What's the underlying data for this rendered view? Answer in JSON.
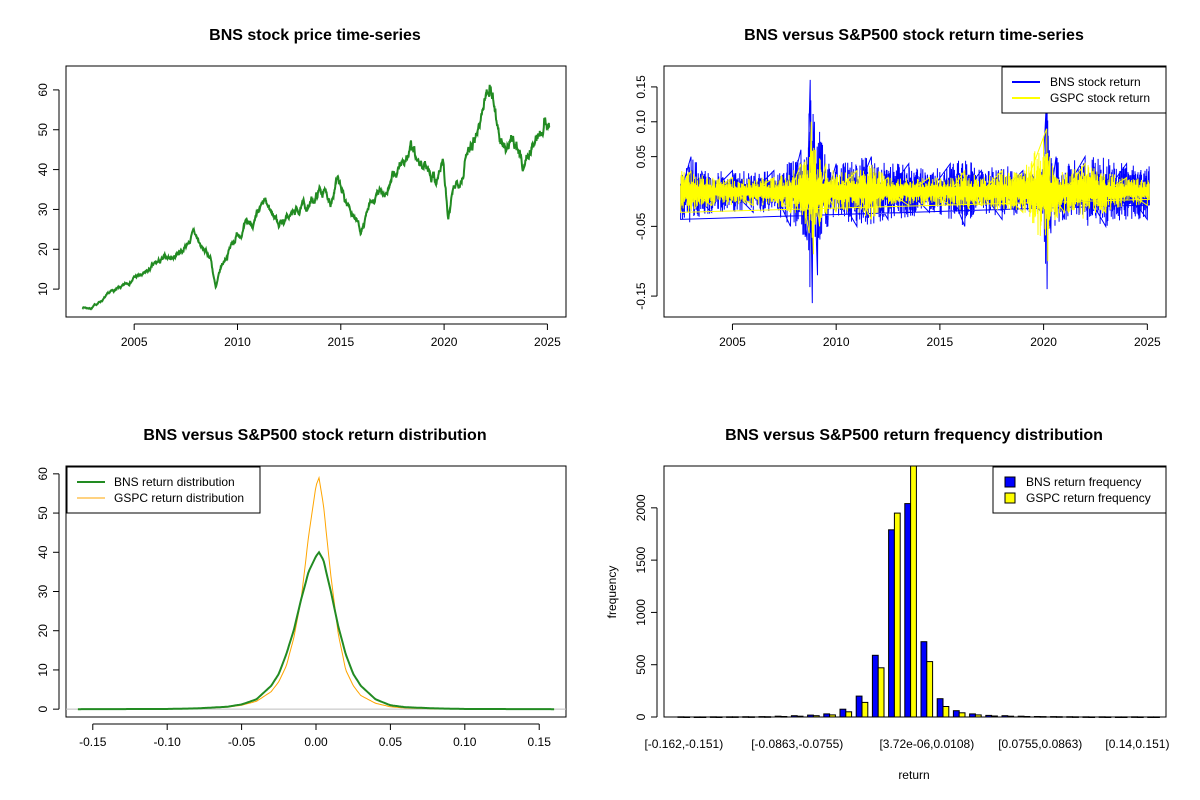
{
  "chart_data": [
    {
      "type": "line",
      "title": "BNS stock price time-series",
      "xlabel": "",
      "ylabel": "",
      "xlim": [
        2001.7,
        2025.9
      ],
      "ylim": [
        3,
        66
      ],
      "xticks": [
        2005,
        2010,
        2015,
        2020,
        2025
      ],
      "yticks": [
        10,
        20,
        30,
        40,
        50,
        60
      ],
      "color": "#228B22",
      "series": [
        {
          "x": [
            2002.5,
            2002.9,
            2003.5,
            2004.0,
            2004.5,
            2005.0,
            2005.5,
            2006.0,
            2006.5,
            2007.0,
            2007.5,
            2007.9,
            2008.3,
            2008.7,
            2008.95,
            2009.2,
            2009.6,
            2010.0,
            2010.5,
            2010.9,
            2011.3,
            2011.7,
            2012.0,
            2012.5,
            2013.0,
            2013.5,
            2014.0,
            2014.5,
            2014.8,
            2015.2,
            2015.6,
            2016.0,
            2016.4,
            2016.8,
            2017.2,
            2017.6,
            2018.0,
            2018.4,
            2018.8,
            2019.2,
            2019.6,
            2019.95,
            2020.2,
            2020.5,
            2020.9,
            2021.3,
            2021.7,
            2022.0,
            2022.2,
            2022.5,
            2022.8,
            2023.1,
            2023.5,
            2023.8,
            2024.2,
            2024.6,
            2024.9,
            2025.1
          ],
          "y": [
            5.5,
            5.2,
            7.5,
            9.5,
            10.5,
            13,
            13.5,
            16,
            17.5,
            18.5,
            21,
            24,
            20,
            18,
            10,
            15,
            20,
            24,
            26,
            27,
            31,
            29,
            27,
            28,
            30,
            31,
            35,
            33,
            37,
            32,
            29,
            25,
            30,
            33,
            35,
            38,
            42,
            45,
            40,
            41,
            38,
            42,
            27,
            35,
            40,
            48,
            52,
            58,
            62,
            55,
            46,
            45,
            47,
            41,
            45,
            49,
            55,
            50
          ]
        }
      ]
    },
    {
      "type": "line",
      "title": "BNS versus S&P500 stock return time-series",
      "xlabel": "",
      "ylabel": "",
      "xlim": [
        2001.7,
        2025.9
      ],
      "ylim": [
        -0.18,
        0.18
      ],
      "xticks": [
        2005,
        2010,
        2015,
        2020,
        2025
      ],
      "yticks": [
        -0.15,
        -0.05,
        0.05,
        0.1,
        0.15
      ],
      "legend": "top-right",
      "series": [
        {
          "name": "BNS stock return",
          "color": "#0000FF",
          "x": [
            2002.5,
            2003.0,
            2004.0,
            2005.0,
            2006.0,
            2007.0,
            2007.8,
            2008.3,
            2008.6,
            2008.75,
            2008.85,
            2008.95,
            2009.1,
            2009.3,
            2009.6,
            2010.0,
            2011.0,
            2011.7,
            2012.5,
            2013.5,
            2014.5,
            2015.5,
            2016.2,
            2017.0,
            2018.0,
            2019.0,
            2019.9,
            2020.12,
            2020.17,
            2020.22,
            2020.35,
            2020.6,
            2021.0,
            2022.0,
            2023.0,
            2024.0,
            2025.0
          ],
          "y": [
            -0.04,
            0.05,
            -0.03,
            0.03,
            -0.03,
            0.03,
            -0.05,
            0.06,
            -0.07,
            0.16,
            -0.16,
            0.1,
            -0.12,
            0.07,
            -0.05,
            0.04,
            -0.05,
            0.05,
            -0.04,
            0.04,
            -0.03,
            0.04,
            -0.05,
            0.03,
            -0.04,
            0.03,
            -0.03,
            0.12,
            -0.14,
            0.08,
            -0.06,
            0.05,
            -0.04,
            0.05,
            -0.05,
            0.04,
            -0.04
          ]
        },
        {
          "name": "GSPC stock return",
          "color": "#FFFF00",
          "x": [
            2002.5,
            2003.0,
            2004.0,
            2005.0,
            2006.0,
            2007.0,
            2007.8,
            2008.3,
            2008.7,
            2008.8,
            2008.9,
            2009.0,
            2009.2,
            2009.5,
            2010.0,
            2011.0,
            2011.7,
            2012.5,
            2013.5,
            2014.5,
            2015.5,
            2016.2,
            2017.0,
            2018.0,
            2019.0,
            2020.15,
            2020.2,
            2020.3,
            2021.0,
            2022.0,
            2023.0,
            2024.0,
            2025.0
          ],
          "y": [
            -0.03,
            0.03,
            -0.02,
            0.02,
            -0.02,
            0.02,
            -0.03,
            0.04,
            -0.06,
            0.1,
            -0.09,
            0.06,
            -0.05,
            0.04,
            -0.03,
            0.03,
            -0.04,
            0.02,
            -0.02,
            0.02,
            -0.02,
            0.03,
            -0.02,
            0.03,
            -0.03,
            0.09,
            -0.1,
            0.05,
            -0.03,
            0.04,
            -0.03,
            0.02,
            -0.02
          ]
        }
      ]
    },
    {
      "type": "line",
      "title": "BNS versus S&P500 stock return distribution",
      "xlabel": "",
      "ylabel": "",
      "xlim": [
        -0.168,
        0.168
      ],
      "ylim": [
        -2,
        62
      ],
      "xticks": [
        -0.15,
        -0.1,
        -0.05,
        0.0,
        0.05,
        0.1,
        0.15
      ],
      "yticks": [
        0,
        10,
        20,
        30,
        40,
        50,
        60
      ],
      "legend": "top-left",
      "series": [
        {
          "name": "BNS return distribution",
          "color": "#228B22",
          "x": [
            -0.16,
            -0.1,
            -0.08,
            -0.06,
            -0.05,
            -0.04,
            -0.03,
            -0.025,
            -0.02,
            -0.015,
            -0.01,
            -0.005,
            0.0,
            0.002,
            0.005,
            0.01,
            0.015,
            0.02,
            0.025,
            0.03,
            0.04,
            0.05,
            0.06,
            0.08,
            0.1,
            0.16
          ],
          "y": [
            0,
            0.05,
            0.2,
            0.6,
            1.2,
            2.5,
            6,
            9,
            14,
            20,
            28,
            35,
            39,
            40,
            38,
            30,
            21,
            14,
            9,
            6,
            2.5,
            1,
            0.5,
            0.2,
            0.05,
            0
          ]
        },
        {
          "name": "GSPC return distribution",
          "color": "#FFA500",
          "x": [
            -0.16,
            -0.1,
            -0.08,
            -0.06,
            -0.05,
            -0.04,
            -0.03,
            -0.025,
            -0.02,
            -0.015,
            -0.01,
            -0.005,
            0.0,
            0.002,
            0.005,
            0.01,
            0.015,
            0.02,
            0.025,
            0.03,
            0.04,
            0.05,
            0.06,
            0.08,
            0.1,
            0.16
          ],
          "y": [
            0,
            0.05,
            0.2,
            0.5,
            1.0,
            2.0,
            4.5,
            7,
            11,
            18,
            28,
            44,
            57,
            59,
            52,
            34,
            19,
            10,
            6,
            3.5,
            1.5,
            0.6,
            0.3,
            0.1,
            0.05,
            0
          ]
        }
      ]
    },
    {
      "type": "bar",
      "title": "BNS versus S&P500 return frequency distribution",
      "xlabel": "return",
      "ylabel": "frequency",
      "ylim": [
        0,
        2400
      ],
      "yticks": [
        0,
        500,
        1000,
        1500,
        2000
      ],
      "legend": "top-right",
      "tick_labels": [
        "[-0.162,-0.151)",
        "[-0.0863,-0.0755)",
        "[3.72e-06,0.0108)",
        "[0.0755,0.0863)",
        "[0.14,0.151)"
      ],
      "tick_label_bins": [
        0,
        7,
        15,
        22,
        28
      ],
      "categories": [
        "b0",
        "b1",
        "b2",
        "b3",
        "b4",
        "b5",
        "b6",
        "b7",
        "b8",
        "b9",
        "b10",
        "b11",
        "b12",
        "b13",
        "b14",
        "b15",
        "b16",
        "b17",
        "b18",
        "b19",
        "b20",
        "b21",
        "b22",
        "b23",
        "b24",
        "b25",
        "b26",
        "b27",
        "b28",
        "b29"
      ],
      "series": [
        {
          "name": "BNS return frequency",
          "color": "#0000FF",
          "values": [
            2,
            1,
            2,
            2,
            3,
            4,
            8,
            12,
            18,
            30,
            75,
            200,
            590,
            1790,
            2040,
            720,
            175,
            60,
            30,
            15,
            12,
            8,
            5,
            4,
            3,
            2,
            2,
            1,
            2,
            1
          ]
        },
        {
          "name": "GSPC return frequency",
          "color": "#FFFF00",
          "values": [
            1,
            1,
            1,
            2,
            2,
            3,
            5,
            8,
            12,
            20,
            50,
            140,
            470,
            1950,
            2400,
            530,
            100,
            40,
            20,
            10,
            8,
            5,
            4,
            3,
            2,
            1,
            1,
            1,
            1,
            1
          ]
        }
      ]
    }
  ]
}
